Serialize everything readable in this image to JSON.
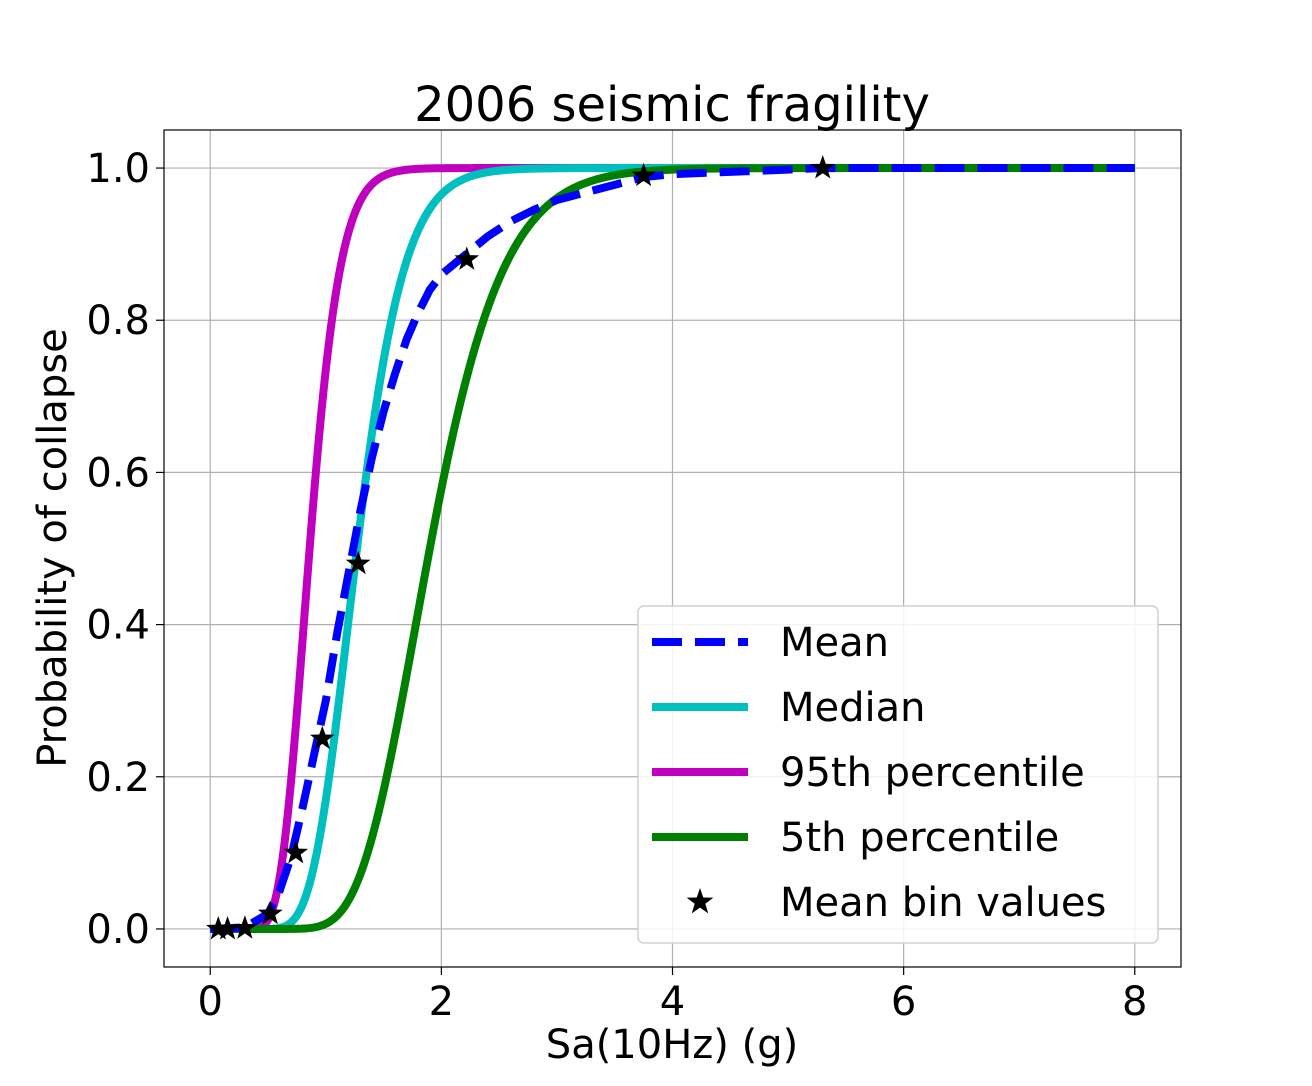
{
  "chart_data": {
    "type": "line",
    "title": "2006 seismic fragility",
    "xlabel": "Sa(10Hz) (g)",
    "ylabel": "Probability of collapse",
    "xlim": [
      -0.4,
      8.4
    ],
    "ylim": [
      -0.05,
      1.05
    ],
    "xticks": [
      0,
      2,
      4,
      6,
      8
    ],
    "xtick_labels": [
      "0",
      "2",
      "4",
      "6",
      "8"
    ],
    "yticks": [
      0.0,
      0.2,
      0.4,
      0.6,
      0.8,
      1.0
    ],
    "ytick_labels": [
      "0.0",
      "0.2",
      "0.4",
      "0.6",
      "0.8",
      "1.0"
    ],
    "grid": true,
    "legend_position": "lower-right",
    "series": [
      {
        "name": "Mean",
        "style": "dashed",
        "color": "#0000ff",
        "x": [
          0,
          0.3,
          0.5,
          0.6,
          0.7,
          0.8,
          0.9,
          1.0,
          1.1,
          1.2,
          1.3,
          1.4,
          1.5,
          1.6,
          1.7,
          1.8,
          1.9,
          2.0,
          2.2,
          2.4,
          2.6,
          2.8,
          3.0,
          3.3,
          3.75,
          4.0,
          5.0,
          5.3,
          6.0,
          7.0,
          8.0
        ],
        "y": [
          0,
          0.002,
          0.02,
          0.05,
          0.095,
          0.16,
          0.23,
          0.3,
          0.39,
          0.47,
          0.55,
          0.62,
          0.68,
          0.73,
          0.775,
          0.81,
          0.84,
          0.86,
          0.885,
          0.91,
          0.93,
          0.945,
          0.958,
          0.97,
          0.988,
          0.992,
          0.998,
          1.0,
          1.0,
          1.0,
          1.0
        ]
      },
      {
        "name": "Median",
        "style": "solid",
        "color": "#00bfbf",
        "median": 1.27,
        "beta": 0.25
      },
      {
        "name": "95th percentile",
        "style": "solid",
        "color": "#bf00bf",
        "median": 0.86,
        "beta": 0.24
      },
      {
        "name": "5th percentile",
        "style": "solid",
        "color": "#008000",
        "median": 1.9,
        "beta": 0.26
      },
      {
        "name": "Mean bin values",
        "style": "markers",
        "marker": "star",
        "color": "#000000",
        "x": [
          0.07,
          0.15,
          0.3,
          0.52,
          0.74,
          0.97,
          1.28,
          2.22,
          3.75,
          5.3
        ],
        "y": [
          0.0,
          0.0,
          0.001,
          0.02,
          0.1,
          0.25,
          0.48,
          0.88,
          0.99,
          1.0
        ]
      }
    ]
  }
}
